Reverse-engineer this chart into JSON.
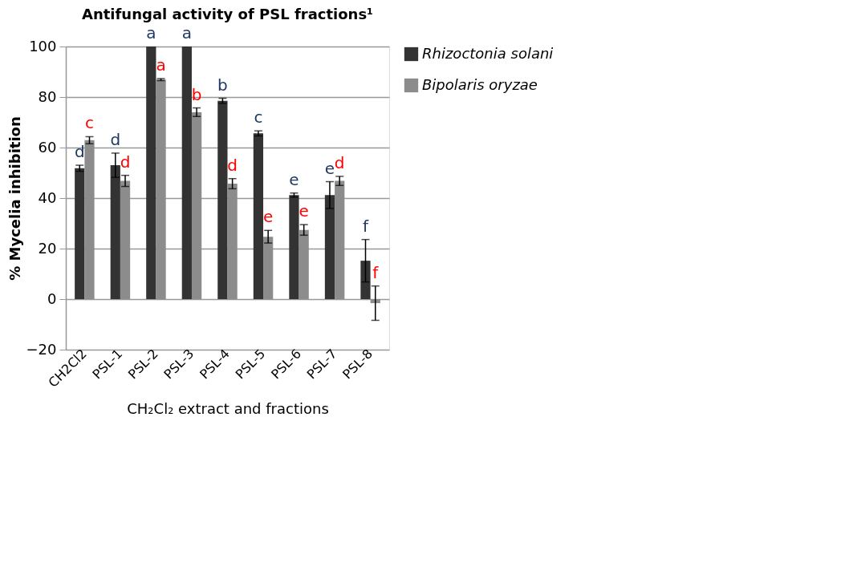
{
  "chart_data": {
    "type": "bar",
    "title": "Antifungal activity of PSL fractions¹",
    "xlabel": "CH₂Cl₂ extract and fractions",
    "ylabel": "% Mycelia inhibition",
    "categories": [
      "CH2Cl2",
      "PSL-1",
      "PSL-2",
      "PSL-3",
      "PSL-4",
      "PSL-5",
      "PSL-6",
      "PSL-7",
      "PSL-8"
    ],
    "series": [
      {
        "name": "Rhizoctonia solani",
        "color": "#333333",
        "values": [
          51.8,
          53,
          100,
          100,
          78.5,
          65.6,
          41.2,
          41.2,
          15.2
        ],
        "errors": [
          1.2,
          4.8,
          null,
          null,
          1,
          1,
          0.8,
          5.3,
          8.4
        ],
        "value_labels": [
          "d",
          "d",
          "a",
          "a",
          "b",
          "c",
          "e",
          "e",
          "f"
        ]
      },
      {
        "name": "Bipolaris oryzae",
        "color": "#8c8c8c",
        "values": [
          62.9,
          46.8,
          86.9,
          74,
          45.7,
          24.7,
          27.4,
          46.8,
          -1.6
        ],
        "errors": [
          1.4,
          2.2,
          0.4,
          1.7,
          2,
          2.5,
          2.1,
          1.8,
          6.8
        ],
        "value_labels": [
          "c",
          "d",
          "a",
          "b",
          "d",
          "e",
          "e",
          "d",
          "f"
        ]
      }
    ],
    "ylim": [
      -20,
      100
    ],
    "yticks": [
      -20,
      0,
      20,
      40,
      60,
      80,
      100
    ],
    "grid": "y",
    "legend": "right"
  }
}
